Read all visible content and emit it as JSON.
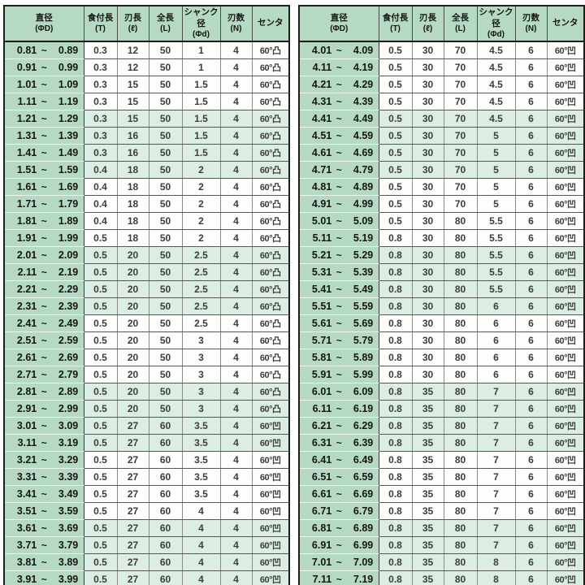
{
  "separator": "~",
  "columns": [
    {
      "label": "直径",
      "sub": "(ΦD)"
    },
    {
      "label": "食付長",
      "sub": "(T)"
    },
    {
      "label": "刃長",
      "sub": "(ℓ)"
    },
    {
      "label": "全長",
      "sub": "(L)"
    },
    {
      "label": "シャンク径",
      "sub": "(Φd)"
    },
    {
      "label": "刃数",
      "sub": "(N)"
    },
    {
      "label": "センタ",
      "sub": ""
    }
  ],
  "colors": {
    "header_green": "#b5d9c3",
    "band_green": "#dcede3",
    "row_white": "#fdfdfc",
    "border_dark": "#1d1d1b",
    "grid_vertical": "#8a8a8a",
    "grid_horizontal": "#565656"
  },
  "tables": [
    {
      "rows": [
        [
          "0.81",
          "0.89",
          "0.3",
          "12",
          "50",
          "1",
          "4",
          "60°凸"
        ],
        [
          "0.91",
          "0.99",
          "0.3",
          "12",
          "50",
          "1",
          "4",
          "60°凸"
        ],
        [
          "1.01",
          "1.09",
          "0.3",
          "15",
          "50",
          "1.5",
          "4",
          "60°凸"
        ],
        [
          "1.11",
          "1.19",
          "0.3",
          "15",
          "50",
          "1.5",
          "4",
          "60°凸"
        ],
        [
          "1.21",
          "1.29",
          "0.3",
          "15",
          "50",
          "1.5",
          "4",
          "60°凸"
        ],
        [
          "1.31",
          "1.39",
          "0.3",
          "16",
          "50",
          "1.5",
          "4",
          "60°凸"
        ],
        [
          "1.41",
          "1.49",
          "0.3",
          "16",
          "50",
          "1.5",
          "4",
          "60°凸"
        ],
        [
          "1.51",
          "1.59",
          "0.4",
          "18",
          "50",
          "2",
          "4",
          "60°凸"
        ],
        [
          "1.61",
          "1.69",
          "0.4",
          "18",
          "50",
          "2",
          "4",
          "60°凸"
        ],
        [
          "1.71",
          "1.79",
          "0.4",
          "18",
          "50",
          "2",
          "4",
          "60°凸"
        ],
        [
          "1.81",
          "1.89",
          "0.4",
          "18",
          "50",
          "2",
          "4",
          "60°凸"
        ],
        [
          "1.91",
          "1.99",
          "0.5",
          "18",
          "50",
          "2",
          "4",
          "60°凸"
        ],
        [
          "2.01",
          "2.09",
          "0.5",
          "20",
          "50",
          "2.5",
          "4",
          "60°凸"
        ],
        [
          "2.11",
          "2.19",
          "0.5",
          "20",
          "50",
          "2.5",
          "4",
          "60°凸"
        ],
        [
          "2.21",
          "2.29",
          "0.5",
          "20",
          "50",
          "2.5",
          "4",
          "60°凸"
        ],
        [
          "2.31",
          "2.39",
          "0.5",
          "20",
          "50",
          "2.5",
          "4",
          "60°凸"
        ],
        [
          "2.41",
          "2.49",
          "0.5",
          "20",
          "50",
          "2.5",
          "4",
          "60°凸"
        ],
        [
          "2.51",
          "2.59",
          "0.5",
          "20",
          "50",
          "3",
          "4",
          "60°凸"
        ],
        [
          "2.61",
          "2.69",
          "0.5",
          "20",
          "50",
          "3",
          "4",
          "60°凸"
        ],
        [
          "2.71",
          "2.79",
          "0.5",
          "20",
          "50",
          "3",
          "4",
          "60°凸"
        ],
        [
          "2.81",
          "2.89",
          "0.5",
          "20",
          "50",
          "3",
          "4",
          "60°凸"
        ],
        [
          "2.91",
          "2.99",
          "0.5",
          "20",
          "50",
          "3",
          "4",
          "60°凸"
        ],
        [
          "3.01",
          "3.09",
          "0.5",
          "27",
          "60",
          "3.5",
          "4",
          "60°凹"
        ],
        [
          "3.11",
          "3.19",
          "0.5",
          "27",
          "60",
          "3.5",
          "4",
          "60°凹"
        ],
        [
          "3.21",
          "3.29",
          "0.5",
          "27",
          "60",
          "3.5",
          "4",
          "60°凹"
        ],
        [
          "3.31",
          "3.39",
          "0.5",
          "27",
          "60",
          "3.5",
          "4",
          "60°凹"
        ],
        [
          "3.41",
          "3.49",
          "0.5",
          "27",
          "60",
          "3.5",
          "4",
          "60°凹"
        ],
        [
          "3.51",
          "3.59",
          "0.5",
          "27",
          "60",
          "4",
          "4",
          "60°凹"
        ],
        [
          "3.61",
          "3.69",
          "0.5",
          "27",
          "60",
          "4",
          "4",
          "60°凹"
        ],
        [
          "3.71",
          "3.79",
          "0.5",
          "27",
          "60",
          "4",
          "4",
          "60°凹"
        ],
        [
          "3.81",
          "3.89",
          "0.5",
          "27",
          "60",
          "4",
          "4",
          "60°凹"
        ],
        [
          "3.91",
          "3.99",
          "0.5",
          "27",
          "60",
          "4",
          "4",
          "60°凹"
        ]
      ]
    },
    {
      "rows": [
        [
          "4.01",
          "4.09",
          "0.5",
          "30",
          "70",
          "4.5",
          "6",
          "60°凹"
        ],
        [
          "4.11",
          "4.19",
          "0.5",
          "30",
          "70",
          "4.5",
          "6",
          "60°凹"
        ],
        [
          "4.21",
          "4.29",
          "0.5",
          "30",
          "70",
          "4.5",
          "6",
          "60°凹"
        ],
        [
          "4.31",
          "4.39",
          "0.5",
          "30",
          "70",
          "4.5",
          "6",
          "60°凹"
        ],
        [
          "4.41",
          "4.49",
          "0.5",
          "30",
          "70",
          "4.5",
          "6",
          "60°凹"
        ],
        [
          "4.51",
          "4.59",
          "0.5",
          "30",
          "70",
          "5",
          "6",
          "60°凹"
        ],
        [
          "4.61",
          "4.69",
          "0.5",
          "30",
          "70",
          "5",
          "6",
          "60°凹"
        ],
        [
          "4.71",
          "4.79",
          "0.5",
          "30",
          "70",
          "5",
          "6",
          "60°凹"
        ],
        [
          "4.81",
          "4.89",
          "0.5",
          "30",
          "70",
          "5",
          "6",
          "60°凹"
        ],
        [
          "4.91",
          "4.99",
          "0.5",
          "30",
          "70",
          "5",
          "6",
          "60°凹"
        ],
        [
          "5.01",
          "5.09",
          "0.5",
          "30",
          "80",
          "5.5",
          "6",
          "60°凹"
        ],
        [
          "5.11",
          "5.19",
          "0.8",
          "30",
          "80",
          "5.5",
          "6",
          "60°凹"
        ],
        [
          "5.21",
          "5.29",
          "0.8",
          "30",
          "80",
          "5.5",
          "6",
          "60°凹"
        ],
        [
          "5.31",
          "5.39",
          "0.8",
          "30",
          "80",
          "5.5",
          "6",
          "60°凹"
        ],
        [
          "5.41",
          "5.49",
          "0.8",
          "30",
          "80",
          "5.5",
          "6",
          "60°凹"
        ],
        [
          "5.51",
          "5.59",
          "0.8",
          "30",
          "80",
          "6",
          "6",
          "60°凹"
        ],
        [
          "5.61",
          "5.69",
          "0.8",
          "30",
          "80",
          "6",
          "6",
          "60°凹"
        ],
        [
          "5.71",
          "5.79",
          "0.8",
          "30",
          "80",
          "6",
          "6",
          "60°凹"
        ],
        [
          "5.81",
          "5.89",
          "0.8",
          "30",
          "80",
          "6",
          "6",
          "60°凹"
        ],
        [
          "5.91",
          "5.99",
          "0.8",
          "30",
          "80",
          "6",
          "6",
          "60°凹"
        ],
        [
          "6.01",
          "6.09",
          "0.8",
          "35",
          "80",
          "7",
          "6",
          "60°凹"
        ],
        [
          "6.11",
          "6.19",
          "0.8",
          "35",
          "80",
          "7",
          "6",
          "60°凹"
        ],
        [
          "6.21",
          "6.29",
          "0.8",
          "35",
          "80",
          "7",
          "6",
          "60°凹"
        ],
        [
          "6.31",
          "6.39",
          "0.8",
          "35",
          "80",
          "7",
          "6",
          "60°凹"
        ],
        [
          "6.41",
          "6.49",
          "0.8",
          "35",
          "80",
          "7",
          "6",
          "60°凹"
        ],
        [
          "6.51",
          "6.59",
          "0.8",
          "35",
          "80",
          "7",
          "6",
          "60°凹"
        ],
        [
          "6.61",
          "6.69",
          "0.8",
          "35",
          "80",
          "7",
          "6",
          "60°凹"
        ],
        [
          "6.71",
          "6.79",
          "0.8",
          "35",
          "80",
          "7",
          "6",
          "60°凹"
        ],
        [
          "6.81",
          "6.89",
          "0.8",
          "35",
          "80",
          "7",
          "6",
          "60°凹"
        ],
        [
          "6.91",
          "6.99",
          "0.8",
          "35",
          "80",
          "7",
          "6",
          "60°凹"
        ],
        [
          "7.01",
          "7.09",
          "0.8",
          "35",
          "80",
          "8",
          "6",
          "60°凹"
        ],
        [
          "7.11",
          "7.19",
          "0.8",
          "35",
          "80",
          "8",
          "6",
          "60°凹"
        ]
      ]
    }
  ]
}
